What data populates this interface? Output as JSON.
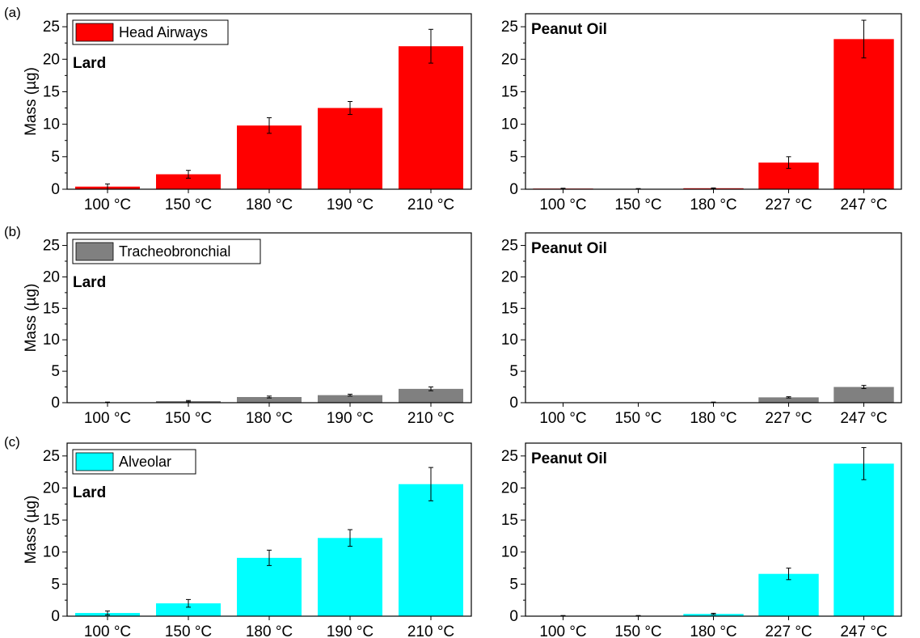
{
  "chart_data": [
    {
      "type": "bar",
      "panel_tag": "(a)",
      "legend": "Head Airways",
      "color": "#ff0000",
      "oil_label": "Lard",
      "ylabel": "Mass (µg)",
      "ylim": [
        0,
        27
      ],
      "yticks": [
        0,
        5,
        10,
        15,
        20,
        25
      ],
      "categories": [
        "100 °C",
        "150 °C",
        "180 °C",
        "190 °C",
        "210 °C"
      ],
      "values": [
        0.4,
        2.3,
        9.8,
        12.5,
        22.0
      ],
      "errors": [
        0.4,
        0.6,
        1.2,
        1.0,
        2.6
      ]
    },
    {
      "type": "bar",
      "oil_label": "Peanut Oil",
      "color": "#ff0000",
      "ylim": [
        0,
        27
      ],
      "yticks": [
        0,
        5,
        10,
        15,
        20,
        25
      ],
      "categories": [
        "100 °C",
        "150 °C",
        "180 °C",
        "227 °C",
        "247 °C"
      ],
      "values": [
        0.1,
        0.05,
        0.15,
        4.1,
        23.1
      ],
      "errors": [
        0.05,
        0.05,
        0.05,
        0.9,
        2.9
      ]
    },
    {
      "type": "bar",
      "panel_tag": "(b)",
      "legend": "Tracheobronchial",
      "color": "#808080",
      "oil_label": "Lard",
      "ylabel": "Mass (µg)",
      "ylim": [
        0,
        27
      ],
      "yticks": [
        0,
        5,
        10,
        15,
        20,
        25
      ],
      "categories": [
        "100 °C",
        "150 °C",
        "180 °C",
        "190 °C",
        "210 °C"
      ],
      "values": [
        0.05,
        0.25,
        0.9,
        1.2,
        2.2
      ],
      "errors": [
        0.05,
        0.1,
        0.15,
        0.15,
        0.3
      ]
    },
    {
      "type": "bar",
      "oil_label": "Peanut Oil",
      "color": "#808080",
      "ylim": [
        0,
        27
      ],
      "yticks": [
        0,
        5,
        10,
        15,
        20,
        25
      ],
      "categories": [
        "100 °C",
        "150 °C",
        "180 °C",
        "227 °C",
        "247 °C"
      ],
      "values": [
        0.0,
        0.0,
        0.05,
        0.85,
        2.5
      ],
      "errors": [
        0.0,
        0.0,
        0.05,
        0.1,
        0.25
      ]
    },
    {
      "type": "bar",
      "panel_tag": "(c)",
      "legend": "Alveolar",
      "color": "#00ffff",
      "oil_label": "Lard",
      "ylabel": "Mass (µg)",
      "ylim": [
        0,
        27
      ],
      "yticks": [
        0,
        5,
        10,
        15,
        20,
        25
      ],
      "categories": [
        "100 °C",
        "150 °C",
        "180 °C",
        "190 °C",
        "210 °C"
      ],
      "values": [
        0.5,
        2.0,
        9.1,
        12.2,
        20.6
      ],
      "errors": [
        0.3,
        0.6,
        1.2,
        1.3,
        2.6
      ]
    },
    {
      "type": "bar",
      "oil_label": "Peanut Oil",
      "color": "#00ffff",
      "ylim": [
        0,
        27
      ],
      "yticks": [
        0,
        5,
        10,
        15,
        20,
        25
      ],
      "categories": [
        "100 °C",
        "150 °C",
        "180 °C",
        "227 °C",
        "247 °C"
      ],
      "values": [
        0.05,
        0.05,
        0.35,
        6.6,
        23.8
      ],
      "errors": [
        0.05,
        0.05,
        0.1,
        0.9,
        2.5
      ]
    }
  ]
}
